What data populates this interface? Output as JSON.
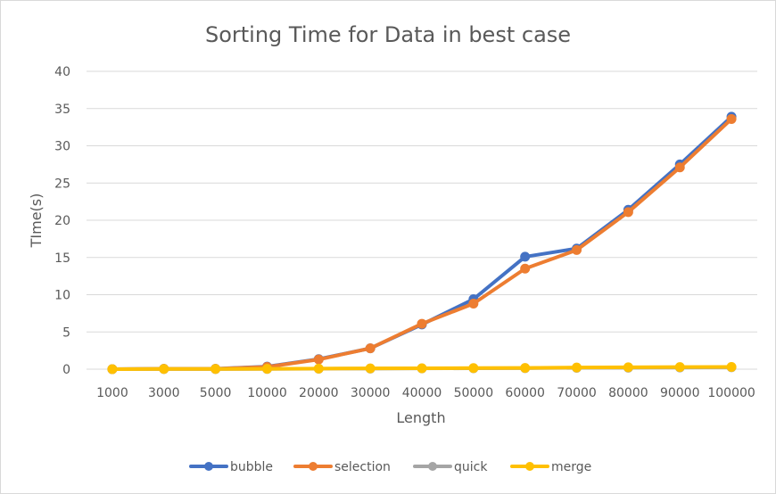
{
  "chart_data": {
    "type": "line",
    "title": "Sorting Time for Data in best case",
    "xlabel": "Length",
    "ylabel": "TIme(s)",
    "categories": [
      "1000",
      "3000",
      "5000",
      "10000",
      "20000",
      "30000",
      "40000",
      "50000",
      "60000",
      "70000",
      "80000",
      "90000",
      "100000"
    ],
    "ylim": [
      0,
      40
    ],
    "yticks": [
      0,
      5,
      10,
      15,
      20,
      25,
      30,
      35,
      40
    ],
    "grid": true,
    "legend_position": "bottom",
    "series": [
      {
        "name": "bubble",
        "color": "#4472C4",
        "values": [
          0.0,
          0.05,
          0.05,
          0.35,
          1.35,
          2.8,
          6.0,
          9.4,
          15.1,
          16.2,
          21.4,
          27.5,
          33.9
        ]
      },
      {
        "name": "selection",
        "color": "#ED7D31",
        "values": [
          0.0,
          0.05,
          0.05,
          0.3,
          1.3,
          2.8,
          6.1,
          8.8,
          13.5,
          16.0,
          21.1,
          27.1,
          33.6
        ]
      },
      {
        "name": "quick",
        "color": "#A5A5A5",
        "values": [
          0.0,
          0.02,
          0.02,
          0.03,
          0.06,
          0.08,
          0.1,
          0.12,
          0.14,
          0.18,
          0.2,
          0.22,
          0.25
        ]
      },
      {
        "name": "merge",
        "color": "#FFC000",
        "values": [
          0.0,
          0.03,
          0.03,
          0.05,
          0.08,
          0.1,
          0.12,
          0.15,
          0.17,
          0.22,
          0.25,
          0.28,
          0.3
        ]
      }
    ]
  }
}
